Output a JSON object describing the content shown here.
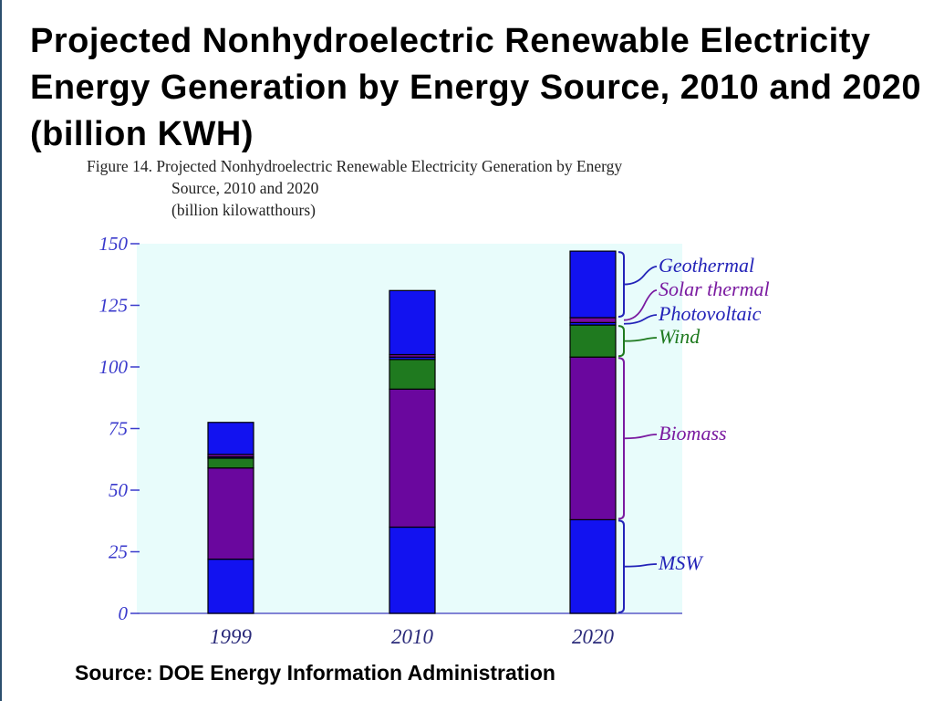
{
  "slide": {
    "title": "Projected Nonhydroelectric Renewable Electricity Energy Generation by Energy Source, 2010 and 2020 (billion KWH)",
    "source": "Source: DOE Energy Information Administration"
  },
  "figure": {
    "caption_line1": "Figure 14. Projected Nonhydroelectric Renewable Electricity Generation by Energy",
    "caption_line2": "Source, 2010 and 2020",
    "caption_line3": "(billion kilowatthours)"
  },
  "chart_data": {
    "type": "bar",
    "stacked": true,
    "categories": [
      "1999",
      "2010",
      "2020"
    ],
    "series": [
      {
        "name": "MSW",
        "values": [
          22,
          35,
          38
        ]
      },
      {
        "name": "Biomass",
        "values": [
          37,
          56,
          66
        ]
      },
      {
        "name": "Wind",
        "values": [
          4,
          12,
          13
        ]
      },
      {
        "name": "Photovoltaic",
        "values": [
          0.5,
          1,
          1
        ]
      },
      {
        "name": "Solar thermal",
        "values": [
          1,
          1,
          2
        ]
      },
      {
        "name": "Geothermal",
        "values": [
          13,
          26,
          27
        ]
      }
    ],
    "colors": {
      "MSW": "#1212f0",
      "Biomass": "#6a079e",
      "Wind": "#1f7a1f",
      "Photovoltaic": "#1212f0",
      "Solar thermal": "#7a0aa0",
      "Geothermal": "#1212f0",
      "background": "#e8fcfb",
      "axis_text": "#3a3acc"
    },
    "label_colors": {
      "MSW": "#2323b8",
      "Biomass": "#7a1aa0",
      "Wind": "#1f7a1f",
      "Photovoltaic": "#2323b8",
      "Solar thermal": "#7a1aa0",
      "Geothermal": "#2323b8"
    },
    "legend_labels": [
      "Geothermal",
      "Solar thermal",
      "Photovoltaic",
      "Wind",
      "Biomass",
      "MSW"
    ],
    "yticks": [
      0,
      25,
      50,
      75,
      100,
      125,
      150
    ],
    "ylim": [
      0,
      150
    ],
    "legend_position": "right, bracketed labels beside 2020 bar",
    "grid": false
  }
}
